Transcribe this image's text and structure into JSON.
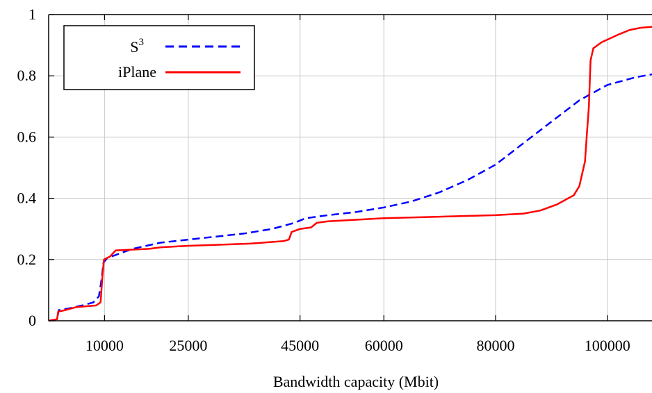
{
  "chart_data": {
    "type": "line",
    "title": "",
    "xlabel": "Bandwidth capacity (Mbit)",
    "ylabel": "",
    "xlim": [
      0,
      108000
    ],
    "ylim": [
      0,
      1
    ],
    "grid": true,
    "legend_position": "top-left",
    "x_ticks": [
      {
        "value": 10000,
        "label": "10000"
      },
      {
        "value": 25000,
        "label": "25000"
      },
      {
        "value": 45000,
        "label": "45000"
      },
      {
        "value": 60000,
        "label": "60000"
      },
      {
        "value": 80000,
        "label": "80000"
      },
      {
        "value": 100000,
        "label": "100000"
      }
    ],
    "y_ticks": [
      {
        "value": 0,
        "label": "0"
      },
      {
        "value": 0.2,
        "label": "0.2"
      },
      {
        "value": 0.4,
        "label": "0.4"
      },
      {
        "value": 0.6,
        "label": "0.6"
      },
      {
        "value": 0.8,
        "label": "0.8"
      },
      {
        "value": 1,
        "label": "1"
      }
    ],
    "legend": {
      "s3_base": "S",
      "s3_sup": "3",
      "iplane": "iPlane"
    },
    "series": [
      {
        "name": "S3",
        "color": "#0000ff",
        "dash": "dashed",
        "points": [
          [
            0,
            0
          ],
          [
            1500,
            0.005
          ],
          [
            1800,
            0.035
          ],
          [
            3500,
            0.04
          ],
          [
            6000,
            0.05
          ],
          [
            8000,
            0.06
          ],
          [
            9000,
            0.08
          ],
          [
            9500,
            0.14
          ],
          [
            9800,
            0.19
          ],
          [
            10500,
            0.205
          ],
          [
            12000,
            0.215
          ],
          [
            15000,
            0.235
          ],
          [
            20000,
            0.255
          ],
          [
            25000,
            0.265
          ],
          [
            30000,
            0.275
          ],
          [
            35000,
            0.285
          ],
          [
            40000,
            0.3
          ],
          [
            44000,
            0.32
          ],
          [
            46000,
            0.335
          ],
          [
            50000,
            0.345
          ],
          [
            55000,
            0.355
          ],
          [
            60000,
            0.37
          ],
          [
            65000,
            0.39
          ],
          [
            70000,
            0.42
          ],
          [
            75000,
            0.46
          ],
          [
            80000,
            0.51
          ],
          [
            85000,
            0.58
          ],
          [
            90000,
            0.65
          ],
          [
            95000,
            0.72
          ],
          [
            100000,
            0.77
          ],
          [
            105000,
            0.795
          ],
          [
            108000,
            0.805
          ]
        ]
      },
      {
        "name": "iPlane",
        "color": "#ff0000",
        "dash": "solid",
        "points": [
          [
            0,
            0
          ],
          [
            1500,
            0.005
          ],
          [
            1700,
            0.03
          ],
          [
            3000,
            0.035
          ],
          [
            5000,
            0.045
          ],
          [
            8500,
            0.05
          ],
          [
            9300,
            0.06
          ],
          [
            9600,
            0.14
          ],
          [
            9900,
            0.2
          ],
          [
            11000,
            0.21
          ],
          [
            12000,
            0.23
          ],
          [
            18000,
            0.235
          ],
          [
            20000,
            0.24
          ],
          [
            25000,
            0.245
          ],
          [
            30000,
            0.248
          ],
          [
            36000,
            0.252
          ],
          [
            42000,
            0.26
          ],
          [
            43000,
            0.265
          ],
          [
            43500,
            0.29
          ],
          [
            45000,
            0.3
          ],
          [
            47000,
            0.305
          ],
          [
            48000,
            0.32
          ],
          [
            50000,
            0.325
          ],
          [
            60000,
            0.335
          ],
          [
            70000,
            0.34
          ],
          [
            80000,
            0.345
          ],
          [
            85000,
            0.35
          ],
          [
            88000,
            0.36
          ],
          [
            91000,
            0.38
          ],
          [
            94000,
            0.41
          ],
          [
            95000,
            0.44
          ],
          [
            95500,
            0.48
          ],
          [
            96000,
            0.52
          ],
          [
            96300,
            0.6
          ],
          [
            96700,
            0.7
          ],
          [
            97000,
            0.85
          ],
          [
            97500,
            0.89
          ],
          [
            99000,
            0.91
          ],
          [
            102000,
            0.935
          ],
          [
            104000,
            0.95
          ],
          [
            106000,
            0.957
          ],
          [
            108000,
            0.96
          ]
        ]
      }
    ]
  }
}
